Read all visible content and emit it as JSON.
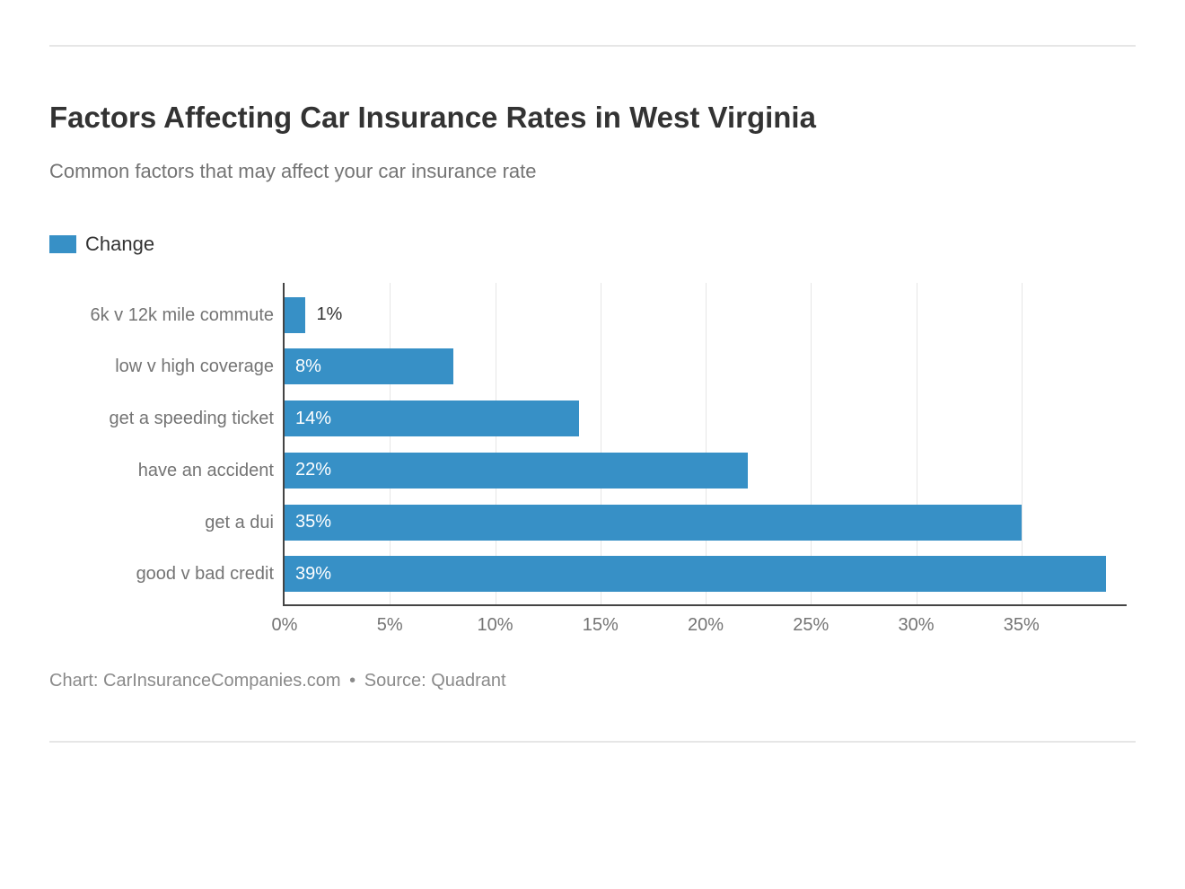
{
  "title": "Factors Affecting Car Insurance Rates in West Virginia",
  "subtitle": "Common factors that may affect your car insurance rate",
  "legend": {
    "label": "Change",
    "color": "#3790c6"
  },
  "chart": {
    "type": "bar-horizontal",
    "bar_color": "#3790c6",
    "background_color": "#ffffff",
    "grid_color": "#e6e6e6",
    "axis_color": "#444444",
    "label_color": "#747474",
    "value_inside_color": "#ffffff",
    "value_outside_color": "#333333",
    "xlim": [
      0,
      40
    ],
    "xtick_step": 5,
    "xticks": [
      {
        "v": 0,
        "label": "0%"
      },
      {
        "v": 5,
        "label": "5%"
      },
      {
        "v": 10,
        "label": "10%"
      },
      {
        "v": 15,
        "label": "15%"
      },
      {
        "v": 20,
        "label": "20%"
      },
      {
        "v": 25,
        "label": "25%"
      },
      {
        "v": 30,
        "label": "30%"
      },
      {
        "v": 35,
        "label": "35%"
      }
    ],
    "categories": [
      {
        "label": "6k v 12k mile commute",
        "value": 1,
        "display": "1%",
        "label_outside": true
      },
      {
        "label": "low v high coverage",
        "value": 8,
        "display": "8%",
        "label_outside": false
      },
      {
        "label": "get a speeding ticket",
        "value": 14,
        "display": "14%",
        "label_outside": false
      },
      {
        "label": "have an accident",
        "value": 22,
        "display": "22%",
        "label_outside": false
      },
      {
        "label": "get a dui",
        "value": 35,
        "display": "35%",
        "label_outside": false
      },
      {
        "label": "good v bad credit",
        "value": 39,
        "display": "39%",
        "label_outside": false
      }
    ],
    "title_fontsize": 33,
    "subtitle_fontsize": 22,
    "label_fontsize": 20
  },
  "attribution": {
    "chart": "Chart: CarInsuranceCompanies.com",
    "sep": "•",
    "source": "Source: Quadrant"
  }
}
